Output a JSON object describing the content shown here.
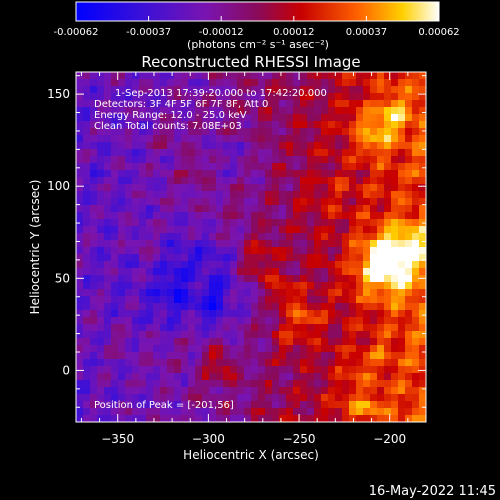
{
  "chart_data": {
    "type": "heatmap",
    "title": "Reconstructed RHESSI Image",
    "xlabel": "Heliocentric X (arcsec)",
    "ylabel": "Heliocentric Y (arcsec)",
    "xlim": [
      -373,
      -180
    ],
    "ylim": [
      -28,
      162
    ],
    "xticks": [
      -350,
      -300,
      -250,
      -200
    ],
    "yticks": [
      0,
      50,
      100,
      150
    ],
    "colorbar": {
      "range": [
        -0.00062,
        0.00062
      ],
      "ticks": [
        "-0.00062",
        "-0.00037",
        "-0.00012",
        "0.00012",
        "0.00037",
        "0.00062"
      ],
      "unit_label": "(photons cm⁻² s⁻¹ asec⁻²)"
    },
    "annotation_lines": [
      "1-Sep-2013 17:39:20.000 to 17:42:20.000",
      "Detectors: 3F 4F 5F 6F 7F 8F, Att 0",
      "Energy Range: 12.0 - 25.0 keV",
      "Clean     Total counts: 7.08E+03"
    ],
    "peak_label": "Position of Peak = [-201,56]",
    "peak": [
      -201,
      56
    ],
    "timestamp": "16-May-2022 11:45",
    "colors": {
      "background": "#000000",
      "text": "#ffffff"
    }
  }
}
